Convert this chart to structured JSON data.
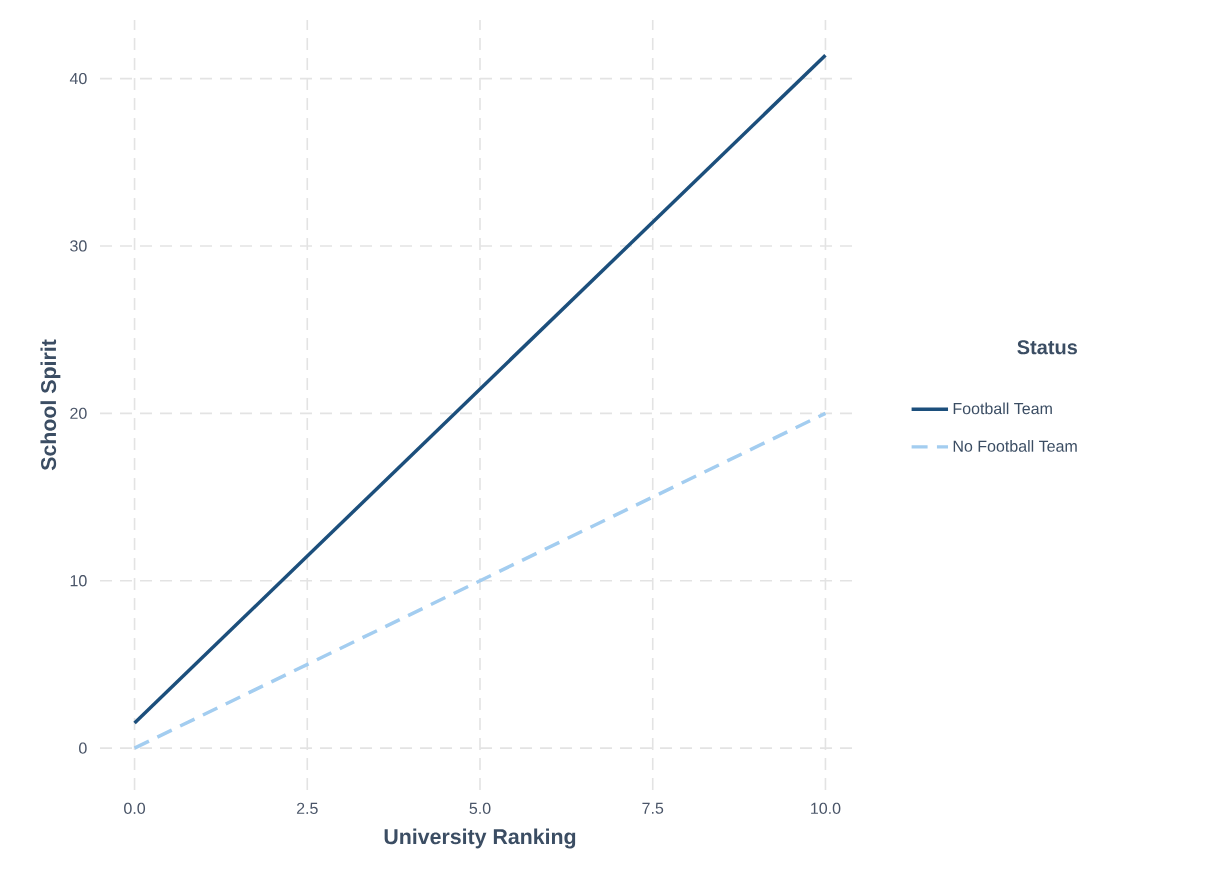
{
  "chart_data": {
    "type": "line",
    "xlabel": "University Ranking",
    "ylabel": "School Spirit",
    "legend_title": "Status",
    "legend": "right",
    "grid": true,
    "xlim": [
      -0.5,
      10.5
    ],
    "ylim": [
      -2.5,
      43.5
    ],
    "xticks": [
      {
        "value": 0,
        "label": "0.0"
      },
      2.5,
      {
        "value": 5,
        "label": "5.0"
      },
      7.5,
      {
        "value": 10,
        "label": "10.0"
      }
    ],
    "yticks": [
      0,
      10,
      20,
      30,
      40
    ],
    "x": [
      0,
      10
    ],
    "series": [
      {
        "name": "Football Team",
        "color": "#1c4f7c",
        "line_style": "solid",
        "values": [
          1.5,
          41.4
        ]
      },
      {
        "name": "No Football Team",
        "color": "#a3cdf0",
        "line_style": "dashed",
        "values": [
          0,
          20
        ]
      }
    ]
  }
}
